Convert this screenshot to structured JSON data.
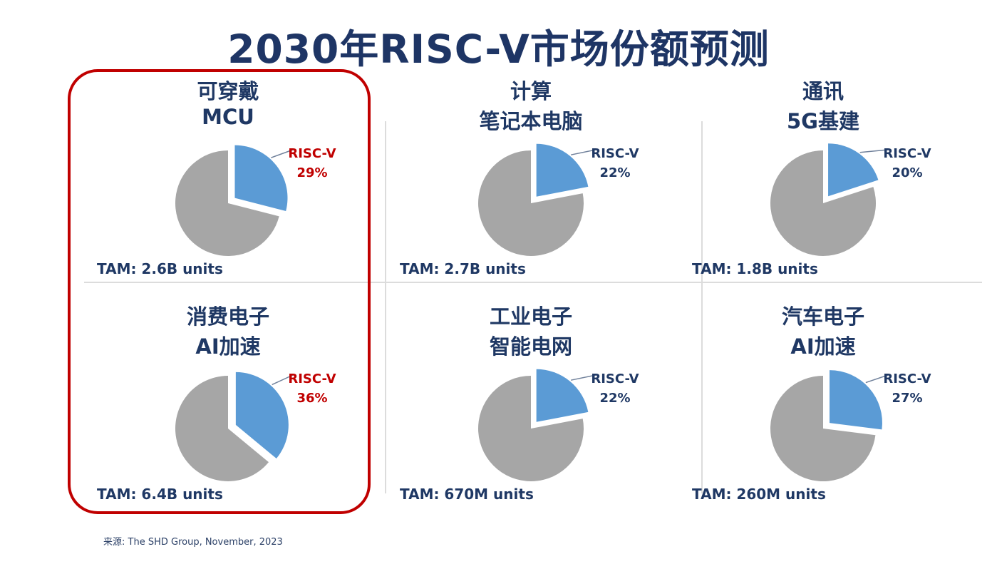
{
  "title": "2030年RISC-V市场份额预测",
  "source": "来源: The SHD Group, November, 2023",
  "slice_colors": {
    "riscv": "#5b9bd5",
    "other": "#a6a6a6"
  },
  "highlight_color": "#c00000",
  "chart_data": [
    {
      "type": "pie",
      "category": "可穿戴",
      "subcategory": "MCU",
      "series_label": "RISC-V",
      "riscv_share_pct": 29,
      "pct_label": "29%",
      "other_share_pct": 71,
      "tam_label": "TAM: 2.6B units",
      "label_color": "#c00000",
      "highlighted": true
    },
    {
      "type": "pie",
      "category": "计算",
      "subcategory": "笔记本电脑",
      "series_label": "RISC-V",
      "riscv_share_pct": 22,
      "pct_label": "22%",
      "other_share_pct": 78,
      "tam_label": "TAM: 2.7B units",
      "label_color": "#1f3864",
      "highlighted": false
    },
    {
      "type": "pie",
      "category": "通讯",
      "subcategory": "5G基建",
      "series_label": "RISC-V",
      "riscv_share_pct": 20,
      "pct_label": "20%",
      "other_share_pct": 80,
      "tam_label": "TAM: 1.8B units",
      "label_color": "#1f3864",
      "highlighted": false
    },
    {
      "type": "pie",
      "category": "消费电子",
      "subcategory": "AI加速",
      "series_label": "RISC-V",
      "riscv_share_pct": 36,
      "pct_label": "36%",
      "other_share_pct": 64,
      "tam_label": "TAM: 6.4B units",
      "label_color": "#c00000",
      "highlighted": true
    },
    {
      "type": "pie",
      "category": "工业电子",
      "subcategory": "智能电网",
      "series_label": "RISC-V",
      "riscv_share_pct": 22,
      "pct_label": "22%",
      "other_share_pct": 78,
      "tam_label": "TAM: 670M units",
      "label_color": "#1f3864",
      "highlighted": false
    },
    {
      "type": "pie",
      "category": "汽车电子",
      "subcategory": "AI加速",
      "series_label": "RISC-V",
      "riscv_share_pct": 27,
      "pct_label": "27%",
      "other_share_pct": 73,
      "tam_label": "TAM: 260M units",
      "label_color": "#1f3864",
      "highlighted": false
    }
  ]
}
